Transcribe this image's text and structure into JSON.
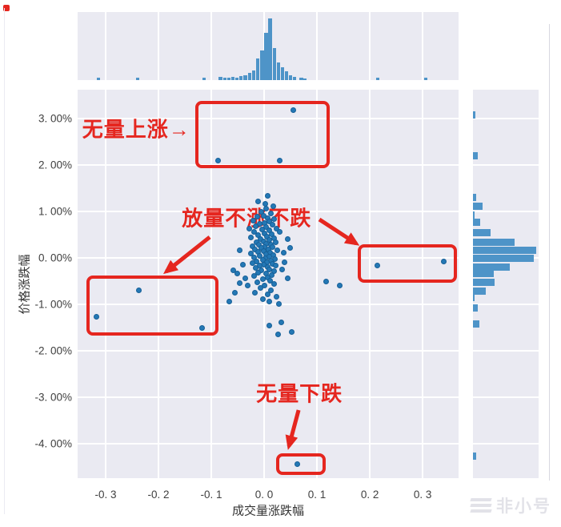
{
  "watermark": {
    "text": "非小号"
  },
  "chart_data": {
    "type": "scatter",
    "subtype": "jointplot_scatter_with_marginal_histograms",
    "x_axis": {
      "label": "成交量涨跌幅",
      "domain": [
        -0.353,
        0.368
      ],
      "ticks": [
        {
          "v": -0.3,
          "label": "-0. 3"
        },
        {
          "v": -0.2,
          "label": "-0. 2"
        },
        {
          "v": -0.1,
          "label": "-0. 1"
        },
        {
          "v": 0.0,
          "label": "0. 0"
        },
        {
          "v": 0.1,
          "label": "0. 1"
        },
        {
          "v": 0.2,
          "label": "0. 2"
        },
        {
          "v": 0.3,
          "label": "0. 3"
        }
      ]
    },
    "y_axis": {
      "label": "价格涨跌幅",
      "unit": "%",
      "domain": [
        -4.741,
        3.621
      ],
      "ticks": [
        {
          "v": 3,
          "label": "3. 00%"
        },
        {
          "v": 2,
          "label": "2. 00%"
        },
        {
          "v": 1,
          "label": "1. 00%"
        },
        {
          "v": 0,
          "label": "0. 00%"
        },
        {
          "v": -1,
          "label": "-1. 00%"
        },
        {
          "v": -2,
          "label": "-2. 00%"
        },
        {
          "v": -3,
          "label": "-3. 00%"
        },
        {
          "v": -4,
          "label": "-4. 00%"
        }
      ]
    },
    "points": [
      [
        0.056,
        3.17
      ],
      [
        -0.086,
        2.09
      ],
      [
        0.03,
        2.09
      ],
      [
        -0.236,
        -0.71
      ],
      [
        -0.317,
        -1.27
      ],
      [
        -0.117,
        -1.52
      ],
      [
        0.215,
        -0.18
      ],
      [
        0.34,
        -0.08
      ],
      [
        0.063,
        -4.44
      ],
      [
        0.118,
        -0.52
      ],
      [
        0.144,
        -0.6
      ],
      [
        0.034,
        -1.39
      ],
      [
        0.011,
        -1.47
      ],
      [
        0.053,
        -1.6
      ],
      [
        0.027,
        -1.66
      ],
      [
        -0.065,
        -0.95
      ],
      [
        -0.054,
        -0.75
      ],
      [
        -0.05,
        -0.35
      ],
      [
        -0.058,
        -0.27
      ],
      [
        -0.045,
        -0.55
      ],
      [
        0.008,
        1.33
      ],
      [
        -0.01,
        1.21
      ],
      [
        0.003,
        1.16
      ],
      [
        0.018,
        1.1
      ],
      [
        0.005,
        1.05
      ],
      [
        -0.004,
        0.98
      ],
      [
        0.013,
        0.95
      ],
      [
        0.0,
        0.9
      ],
      [
        -0.012,
        0.88
      ],
      [
        0.007,
        0.85
      ],
      [
        0.02,
        0.82
      ],
      [
        -0.02,
        0.8
      ],
      [
        0.01,
        0.78
      ],
      [
        0.002,
        0.75
      ],
      [
        -0.008,
        0.72
      ],
      [
        0.016,
        0.7
      ],
      [
        -0.015,
        0.68
      ],
      [
        0.005,
        0.65
      ],
      [
        0.024,
        0.62
      ],
      [
        -0.003,
        0.6
      ],
      [
        0.011,
        0.58
      ],
      [
        -0.019,
        0.55
      ],
      [
        0.001,
        0.52
      ],
      [
        0.015,
        0.5
      ],
      [
        -0.01,
        0.48
      ],
      [
        0.006,
        0.45
      ],
      [
        -0.025,
        0.43
      ],
      [
        0.019,
        0.42
      ],
      [
        -0.006,
        0.4
      ],
      [
        0.01,
        0.38
      ],
      [
        0.0,
        0.35
      ],
      [
        -0.014,
        0.33
      ],
      [
        0.022,
        0.32
      ],
      [
        0.004,
        0.3
      ],
      [
        -0.009,
        0.28
      ],
      [
        0.014,
        0.27
      ],
      [
        -0.021,
        0.25
      ],
      [
        0.002,
        0.23
      ],
      [
        0.017,
        0.22
      ],
      [
        -0.005,
        0.2
      ],
      [
        0.009,
        0.18
      ],
      [
        -0.016,
        0.17
      ],
      [
        0.025,
        0.15
      ],
      [
        0.0,
        0.13
      ],
      [
        -0.011,
        0.12
      ],
      [
        0.012,
        0.1
      ],
      [
        -0.024,
        0.08
      ],
      [
        0.005,
        0.07
      ],
      [
        0.018,
        0.05
      ],
      [
        -0.007,
        0.03
      ],
      [
        0.01,
        0.02
      ],
      [
        -0.018,
        0.0
      ],
      [
        0.003,
        -0.02
      ],
      [
        0.021,
        -0.03
      ],
      [
        -0.002,
        -0.05
      ],
      [
        0.013,
        -0.07
      ],
      [
        -0.013,
        -0.08
      ],
      [
        0.006,
        -0.1
      ],
      [
        -0.022,
        -0.12
      ],
      [
        0.016,
        -0.13
      ],
      [
        0.0,
        -0.15
      ],
      [
        -0.008,
        -0.17
      ],
      [
        0.023,
        -0.18
      ],
      [
        0.008,
        -0.2
      ],
      [
        -0.015,
        -0.22
      ],
      [
        0.011,
        -0.25
      ],
      [
        -0.004,
        -0.27
      ],
      [
        0.019,
        -0.3
      ],
      [
        -0.01,
        -0.32
      ],
      [
        0.004,
        -0.35
      ],
      [
        0.015,
        -0.38
      ],
      [
        -0.019,
        -0.4
      ],
      [
        0.007,
        -0.43
      ],
      [
        -0.001,
        -0.47
      ],
      [
        0.012,
        -0.5
      ],
      [
        -0.012,
        -0.53
      ],
      [
        0.02,
        -0.57
      ],
      [
        0.001,
        -0.6
      ],
      [
        -0.006,
        -0.65
      ],
      [
        0.014,
        -0.7
      ],
      [
        -0.016,
        -0.75
      ],
      [
        0.008,
        -0.8
      ],
      [
        0.024,
        -0.85
      ],
      [
        -0.002,
        -0.9
      ],
      [
        0.01,
        -0.95
      ],
      [
        0.028,
        -1.0
      ],
      [
        -0.03,
        -0.6
      ],
      [
        -0.035,
        -0.45
      ],
      [
        0.035,
        -0.25
      ],
      [
        0.04,
        -0.1
      ],
      [
        0.038,
        0.1
      ],
      [
        -0.045,
        0.15
      ],
      [
        0.045,
        0.4
      ],
      [
        0.05,
        0.2
      ],
      [
        -0.04,
        -0.15
      ],
      [
        0.045,
        -0.45
      ],
      [
        -0.028,
        0.62
      ],
      [
        0.03,
        0.55
      ]
    ],
    "top_histogram": {
      "note": "x in data units, h = bar height px (estimated counts proxy)",
      "bars": [
        [
          -0.3136,
          3
        ],
        [
          -0.2394,
          3
        ],
        [
          -0.1136,
          3.5
        ],
        [
          -0.0826,
          4
        ],
        [
          -0.0742,
          3
        ],
        [
          -0.0667,
          3
        ],
        [
          -0.0591,
          4
        ],
        [
          -0.0515,
          3
        ],
        [
          -0.0439,
          5
        ],
        [
          -0.0356,
          6.5
        ],
        [
          -0.0273,
          9
        ],
        [
          -0.0197,
          12.5
        ],
        [
          -0.0121,
          27.5
        ],
        [
          -0.0038,
          37.5
        ],
        [
          0.0038,
          59
        ],
        [
          0.0114,
          77.5
        ],
        [
          0.0197,
          40
        ],
        [
          0.0273,
          22.5
        ],
        [
          0.0348,
          16.5
        ],
        [
          0.0424,
          11
        ],
        [
          0.05,
          6.5
        ],
        [
          0.0576,
          4.5
        ],
        [
          0.07,
          3.5
        ],
        [
          0.077,
          2.5
        ],
        [
          0.2152,
          3
        ],
        [
          0.3061,
          3
        ]
      ]
    },
    "right_histogram": {
      "note": "y in %, len = bar length px (estimated counts proxy)",
      "bars": [
        [
          3.08,
          3
        ],
        [
          2.19,
          6
        ],
        [
          1.31,
          4
        ],
        [
          1.12,
          12
        ],
        [
          0.93,
          2
        ],
        [
          0.76,
          9
        ],
        [
          0.55,
          22
        ],
        [
          0.34,
          52
        ],
        [
          0.17,
          79
        ],
        [
          0.0,
          76
        ],
        [
          -0.19,
          46
        ],
        [
          -0.34,
          26
        ],
        [
          -0.52,
          27
        ],
        [
          -0.72,
          16
        ],
        [
          -0.86,
          2
        ],
        [
          -1.07,
          6
        ],
        [
          -1.43,
          8
        ],
        [
          -4.26,
          4
        ]
      ]
    },
    "annotations": {
      "texts": [
        {
          "id": "rise-label",
          "label": "无量上涨→",
          "x": -0.242,
          "y": 2.793
        },
        {
          "id": "flat-label",
          "label": "放量不涨不跌",
          "x": -0.033,
          "y": 0.879
        },
        {
          "id": "drop-label",
          "label": "无量下跌",
          "x": 0.0667,
          "y": -2.897
        }
      ],
      "boxes": [
        {
          "id": "box-rise",
          "x1": -0.1303,
          "y1": 3.379,
          "x2": 0.1242,
          "y2": 1.931
        },
        {
          "id": "box-left",
          "x1": -0.3364,
          "y1": -0.379,
          "x2": -0.0864,
          "y2": -1.672
        },
        {
          "id": "box-right",
          "x1": 0.1773,
          "y1": 0.293,
          "x2": 0.3652,
          "y2": -0.534
        },
        {
          "id": "box-drop",
          "x1": 0.0227,
          "y1": -4.207,
          "x2": 0.1167,
          "y2": -4.672
        }
      ],
      "arrows": [
        {
          "id": "arrow-to-left-box",
          "x1": -0.103,
          "y1": 0.448,
          "x2": -0.185,
          "y2": -0.293
        },
        {
          "id": "arrow-to-right-box",
          "x1": 0.1045,
          "y1": 0.828,
          "x2": 0.1742,
          "y2": 0.31
        },
        {
          "id": "arrow-to-drop-box",
          "x1": 0.0652,
          "y1": -3.276,
          "x2": 0.047,
          "y2": -4.052
        }
      ]
    },
    "colors": {
      "dot": "#2478b5",
      "bar": "#4e94c8",
      "panel": "#eaeaf2",
      "grid": "#ffffff",
      "annotation_red": "#e5261f",
      "tick_text": "#3f3f3f",
      "watermark": "#e2e2e8"
    },
    "grid": true,
    "legend": "none"
  }
}
